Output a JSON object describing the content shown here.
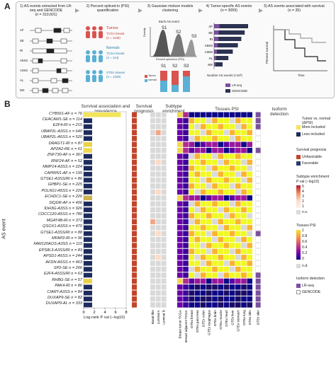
{
  "panel_a": {
    "letter": "A",
    "steps": [
      {
        "title": "1) AS events extracted from LR-seq and GENCODE",
        "count": "(n = 310,601)"
      },
      {
        "title": "2) Percent spliced-in (PSI) quantification",
        "count": ""
      },
      {
        "title": "3) Gaussian mixture models clustering",
        "count": ""
      },
      {
        "title": "4) Tumor-specific AS events",
        "count": "(n = 3059)"
      },
      {
        "title": "5) AS events associated with survival",
        "count": "(n = 35)"
      }
    ],
    "event_types": [
      "AF",
      "SE",
      "RI",
      "A5SS",
      "A3SS",
      "AL",
      "MX"
    ],
    "tumors_label": "Tumors",
    "tumors_sub": "TCGA breast",
    "tumors_n": "(n = 1135)",
    "normals_label": "Normals",
    "normals_sub1": "TCGA breast",
    "normals_n1": "(n = 114)",
    "normals_sub2": "GTEx tissues",
    "normals_n2": "(n = 1329)",
    "each_event": "Each AS event",
    "density": "Density",
    "psi_axis": "Percent spliced-in (PSI)",
    "clusters": [
      "S1",
      "S2",
      "S3"
    ],
    "s_labels": [
      "S1",
      "S2",
      "S3"
    ],
    "tumor": "Tumor",
    "normal": "normal",
    "number_as": "Number AS events (×10³)",
    "bar_types": [
      "AF",
      "SE",
      "RI",
      "A5SS",
      "A3SS",
      "AL",
      "MX"
    ],
    "bar_values": [
      1.0,
      0.9,
      0.8,
      0.7,
      0.55,
      0.42,
      0.25
    ],
    "lrseq": "LR-seq",
    "gencode": "GENCODE",
    "percent_survival": "Percent survival",
    "time": "Time"
  },
  "panel_b": {
    "letter": "B",
    "y_axis": "AS event",
    "headers": {
      "survival": "Survival association and prevalence",
      "prognosis": "Survival prognosis",
      "subtype": "Subtype enrichment",
      "tissues": "Tissues PSI",
      "isoform": "Isoform detection"
    },
    "xaxis_label": "Log-rank P val (−log10)",
    "xticks": [
      "0",
      "2",
      "4",
      "6",
      "8"
    ],
    "subtype_cols": [
      "Basal-like",
      "Luminal A",
      "Luminal B"
    ],
    "tissue_cols": [
      "Breast tumor TCGA",
      "Breast adjacent TCGA",
      "GTEx breast",
      "GTEx pancreas",
      "GTEx colon",
      "GTEx esophagus",
      "GTEx brain",
      "GTEx muscle",
      "GTEx heart",
      "GTEx liver",
      "GTEx stomach",
      "GTEx lung",
      "GTEx skin"
    ],
    "iso_cols": [
      "GTEx skin"
    ],
    "events": [
      {
        "label": "CYB561-AF n = 76",
        "v": 7.0,
        "c": "#f2e45c",
        "prog": 1,
        "iso": 1
      },
      {
        "label": "CEACAM1-SE n = 114",
        "v": 1.6,
        "c": "#1d2b5c",
        "prog": 1,
        "iso": 1
      },
      {
        "label": "E2F4-RI n = 215",
        "v": 1.6,
        "c": "#1d2b5c",
        "prog": 1,
        "iso": 1
      },
      {
        "label": "UBAP2L-A3SS n = 640",
        "v": 1.6,
        "c": "#1d2b5c",
        "prog": 1,
        "iso": 0
      },
      {
        "label": "UBAP2L-A5SS n = 520",
        "v": 1.6,
        "c": "#1d2b5c",
        "prog": 1,
        "iso": 0
      },
      {
        "label": "DRAGT1-RI n = 87",
        "v": 1.6,
        "c": "#e9d24a",
        "prog": 1,
        "iso": 0
      },
      {
        "label": "APZA2-RE n = 61",
        "v": 1.6,
        "c": "#f0d94f",
        "prog": 1,
        "iso": 1
      },
      {
        "label": "ZNF730-AF n = 367",
        "v": 1.6,
        "c": "#1d2b5c",
        "prog": 1,
        "iso": 0
      },
      {
        "label": "RNF24-AF n = 52",
        "v": 1.6,
        "c": "#1d2b5c",
        "prog": 1,
        "iso": 0
      },
      {
        "label": "MMP14-A3SS n = 224",
        "v": 1.6,
        "c": "#1d2b5c",
        "prog": 1,
        "iso": 0
      },
      {
        "label": "CAPRIN1-AF n = 195",
        "v": 1.6,
        "c": "#1d2b5c",
        "prog": 1,
        "iso": 0
      },
      {
        "label": "GTSE1-A3SS/RI n = 86",
        "v": 1.6,
        "c": "#1d2b5c",
        "prog": 1,
        "iso": 0
      },
      {
        "label": "GPBP1-SE n = 225",
        "v": 1.6,
        "c": "#1d2b5c",
        "prog": 1,
        "iso": 0
      },
      {
        "label": "POLR2J-A5SS n = 229",
        "v": 1.6,
        "c": "#1d2b5c",
        "prog": 1,
        "iso": 0
      },
      {
        "label": "ECHDC1-SE n = 226",
        "v": 1.6,
        "c": "#c9b24f",
        "prog": 1,
        "iso": 0
      },
      {
        "label": "SIQDR-AF n = 406",
        "v": 1.6,
        "c": "#1d2b5c",
        "prog": 1,
        "iso": 0
      },
      {
        "label": "IDH3G-A3SS n = 926",
        "v": 1.6,
        "c": "#1d2b5c",
        "prog": 1,
        "iso": 0
      },
      {
        "label": "CDCC120-A5SS n = 780",
        "v": 1.6,
        "c": "#1d2b5c",
        "prog": 1,
        "iso": 0
      },
      {
        "label": "MGAT4B-RI n = 373",
        "v": 1.6,
        "c": "#1d2b5c",
        "prog": 1,
        "iso": 0
      },
      {
        "label": "QSOX1-A3SS n = 470",
        "v": 1.6,
        "c": "#1d2b5c",
        "prog": 1,
        "iso": 0
      },
      {
        "label": "GTSE1-A3SS/RI n = 88",
        "v": 1.6,
        "c": "#1d2b5c",
        "prog": 1,
        "iso": 1
      },
      {
        "label": "MFAP2-RI n = 96",
        "v": 1.6,
        "c": "#1d2b5c",
        "prog": 1,
        "iso": 0
      },
      {
        "label": "FAM120AOS-A3SS n = 115",
        "v": 1.6,
        "c": "#1d2b5c",
        "prog": 1,
        "iso": 0
      },
      {
        "label": "EPS8L3-A3SS/RI n = 83",
        "v": 1.6,
        "c": "#1d2b5c",
        "prog": 1,
        "iso": 0
      },
      {
        "label": "APSD1-A5SS n = 244",
        "v": 1.6,
        "c": "#1d2b5c",
        "prog": 1,
        "iso": 0
      },
      {
        "label": "AFDN-A5SS n = 463",
        "v": 1.6,
        "c": "#1d2b5c",
        "prog": 1,
        "iso": 0
      },
      {
        "label": "SP2-SE n = 206",
        "v": 1.6,
        "c": "#1d2b5c",
        "prog": 1,
        "iso": 0
      },
      {
        "label": "E2F4-A5SS/RI n = 63",
        "v": 1.6,
        "c": "#1d2b5c",
        "prog": 1,
        "iso": 1
      },
      {
        "label": "RHBG-SE n = 57",
        "v": 1.6,
        "c": "#e9d24a",
        "prog": 1,
        "iso": 1
      },
      {
        "label": "PAK4-RI n = 86",
        "v": 1.6,
        "c": "#1d2b5c",
        "prog": 1,
        "iso": 1
      },
      {
        "label": "CIART-A3SS n = 84",
        "v": 1.6,
        "c": "#1d2b5c",
        "prog": 1,
        "iso": 1
      },
      {
        "label": "DUXAP9-SE n = 82",
        "v": 1.6,
        "c": "#1d2b5c",
        "prog": 1,
        "iso": 1
      },
      {
        "label": "DUXAP9-AL n = 333",
        "v": 1.6,
        "c": "#1d2b5c",
        "prog": 1,
        "iso": 1
      }
    ],
    "legend": {
      "tumor_vs_normal": "Tumor vs. normal (ΔPSI)",
      "more": "More included",
      "less": "Less included",
      "surv_title": "Survival prognosis",
      "unfav": "Unfavorable",
      "fav": "Favorable",
      "subtype_title": "Subtype enrichment",
      "subtype_sub": "P val (−log10)",
      "subtype_ticks": [
        "5",
        "4",
        "3",
        "2",
        "1"
      ],
      "ns": "n.s.",
      "tissue_title": "Tissues PSI",
      "tissue_ticks": [
        "1",
        "0.8",
        "0.6",
        "0.4",
        "0.2",
        "0"
      ],
      "nd": "n.d.",
      "iso_title": "Isoform detection",
      "iso_lr": "LR-seq",
      "iso_gc": "GENCODE"
    },
    "colors": {
      "navy": "#1d2b5c",
      "yellow": "#f2e45c",
      "unfav": "#c0462a",
      "fav": "#2a3a6e",
      "lrseq": "#7b4fa0",
      "gencode": "#2c3350"
    }
  }
}
